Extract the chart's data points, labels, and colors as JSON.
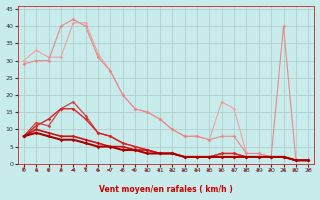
{
  "xlabel": "Vent moyen/en rafales ( km/h )",
  "bg_color": "#c8ecec",
  "grid_color": "#b0c8c8",
  "xlim": [
    -0.5,
    23.5
  ],
  "ylim": [
    0,
    46
  ],
  "yticks": [
    0,
    5,
    10,
    15,
    20,
    25,
    30,
    35,
    40,
    45
  ],
  "xticks": [
    0,
    1,
    2,
    3,
    4,
    5,
    6,
    7,
    8,
    9,
    10,
    11,
    12,
    13,
    14,
    15,
    16,
    17,
    18,
    19,
    20,
    21,
    22,
    23
  ],
  "series": [
    {
      "x": [
        0,
        1,
        2,
        3,
        4,
        5,
        6,
        7,
        8,
        9,
        10,
        11,
        12,
        13,
        14,
        15,
        16,
        17,
        18,
        19,
        20,
        21,
        22,
        23
      ],
      "y": [
        30,
        33,
        31,
        31,
        41,
        41,
        32,
        27,
        20,
        16,
        15,
        13,
        10,
        8,
        8,
        7,
        18,
        16,
        3,
        3,
        2,
        2,
        1,
        1
      ],
      "color": "#f0a0a0",
      "lw": 0.8,
      "marker": "D",
      "ms": 1.8
    },
    {
      "x": [
        0,
        1,
        2,
        3,
        4,
        5,
        6,
        7,
        8,
        9,
        10,
        11,
        12,
        13,
        14,
        15,
        16,
        17,
        18,
        19,
        20,
        21,
        22,
        23
      ],
      "y": [
        29,
        30,
        30,
        40,
        42,
        40,
        31,
        27,
        20,
        16,
        15,
        13,
        10,
        8,
        8,
        7,
        8,
        8,
        3,
        3,
        2,
        40,
        1,
        1
      ],
      "color": "#e88888",
      "lw": 0.8,
      "marker": "D",
      "ms": 1.8
    },
    {
      "x": [
        0,
        1,
        2,
        3,
        4,
        5,
        6,
        7,
        8,
        9,
        10,
        11,
        12,
        13,
        14,
        15,
        16,
        17,
        18,
        19,
        20,
        21,
        22,
        23
      ],
      "y": [
        8,
        12,
        11,
        16,
        18,
        14,
        9,
        8,
        6,
        5,
        4,
        3,
        3,
        2,
        2,
        2,
        3,
        3,
        2,
        2,
        2,
        2,
        1,
        1
      ],
      "color": "#cc4444",
      "lw": 0.9,
      "marker": "D",
      "ms": 1.8
    },
    {
      "x": [
        0,
        1,
        2,
        3,
        4,
        5,
        6,
        7,
        8,
        9,
        10,
        11,
        12,
        13,
        14,
        15,
        16,
        17,
        18,
        19,
        20,
        21,
        22,
        23
      ],
      "y": [
        8,
        11,
        13,
        16,
        16,
        13,
        9,
        8,
        6,
        5,
        4,
        3,
        3,
        2,
        2,
        2,
        3,
        3,
        2,
        2,
        2,
        2,
        1,
        1
      ],
      "color": "#dd2222",
      "lw": 1.0,
      "marker": "D",
      "ms": 1.8
    },
    {
      "x": [
        0,
        1,
        2,
        3,
        4,
        5,
        6,
        7,
        8,
        9,
        10,
        11,
        12,
        13,
        14,
        15,
        16,
        17,
        18,
        19,
        20,
        21,
        22,
        23
      ],
      "y": [
        8,
        10,
        9,
        8,
        8,
        7,
        6,
        5,
        5,
        4,
        4,
        3,
        3,
        2,
        2,
        2,
        2,
        2,
        2,
        2,
        2,
        2,
        1,
        1
      ],
      "color": "#cc1111",
      "lw": 1.2,
      "marker": "D",
      "ms": 1.8
    },
    {
      "x": [
        0,
        1,
        2,
        3,
        4,
        5,
        6,
        7,
        8,
        9,
        10,
        11,
        12,
        13,
        14,
        15,
        16,
        17,
        18,
        19,
        20,
        21,
        22,
        23
      ],
      "y": [
        8,
        9,
        8,
        7,
        7,
        6,
        5,
        5,
        4,
        4,
        3,
        3,
        3,
        2,
        2,
        2,
        2,
        2,
        2,
        2,
        2,
        2,
        1,
        1
      ],
      "color": "#aa0000",
      "lw": 1.5,
      "marker": "D",
      "ms": 1.8
    }
  ],
  "arrow_color": "#cc2222",
  "xlabel_color": "#cc0000",
  "xlabel_fontsize": 5.5,
  "tick_fontsize": 4.5,
  "arrow_angles_deg": [
    270,
    315,
    300,
    240,
    225,
    270,
    315,
    180,
    210,
    180,
    210,
    210,
    210,
    210,
    210,
    210,
    210,
    210,
    210,
    210,
    210,
    315,
    180,
    45
  ]
}
